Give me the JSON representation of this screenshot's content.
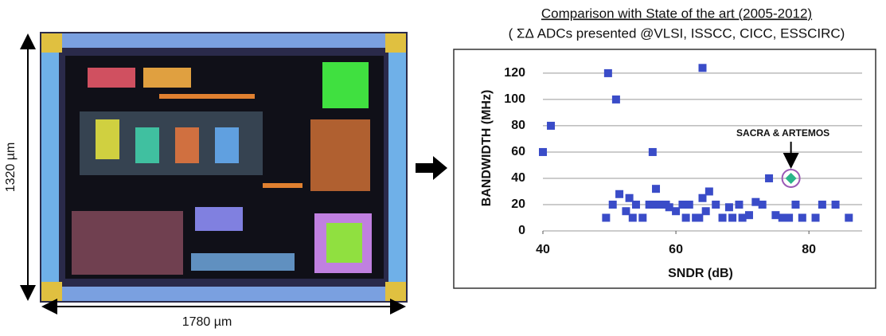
{
  "figure": {
    "height_label": "1320 µm",
    "width_label": "1780 µm"
  },
  "chart_data": {
    "type": "scatter",
    "title": "Comparison with State of the art (2005-2012)",
    "subtitle": "( ΣΔ ADCs presented @VLSI, ISSCC, CICC, ESSCIRC)",
    "x_label": "SNDR (dB)",
    "y_label": "BANDWIDTH (MHz)",
    "xlim": [
      40,
      88
    ],
    "xticks": [
      40,
      60,
      80
    ],
    "ylim": [
      0,
      126
    ],
    "yticks": [
      0,
      20,
      40,
      60,
      80,
      100,
      120
    ],
    "grid": true,
    "series": [
      {
        "name": null,
        "color": "#3a4cc8",
        "x": [
          40,
          41.2,
          49.8,
          51,
          56.5,
          64,
          49.5,
          50.5,
          51.5,
          52.5,
          53,
          53.5,
          54,
          55,
          56,
          56.5,
          57,
          57.5,
          58.5,
          59,
          60,
          61,
          61.5,
          62,
          63,
          63.5,
          64,
          64.5,
          65,
          66,
          67,
          68,
          68.5,
          69.5,
          70,
          71,
          72,
          73,
          74,
          75,
          76,
          77,
          78,
          79,
          81,
          82,
          84,
          86
        ],
        "y": [
          60,
          80,
          120,
          100,
          60,
          124,
          10,
          20,
          28,
          15,
          25,
          10,
          20,
          10,
          20,
          20,
          32,
          20,
          20,
          18,
          15,
          20,
          10,
          20,
          10,
          10,
          25,
          15,
          30,
          20,
          10,
          18,
          10,
          20,
          10,
          12,
          22,
          20,
          40,
          12,
          10,
          10,
          20,
          10,
          10,
          20,
          20,
          10
        ]
      },
      {
        "name": "SACRA & ARTEMOS",
        "color": "#2bb58a",
        "x": [
          77.3
        ],
        "y": [
          40
        ]
      }
    ]
  }
}
